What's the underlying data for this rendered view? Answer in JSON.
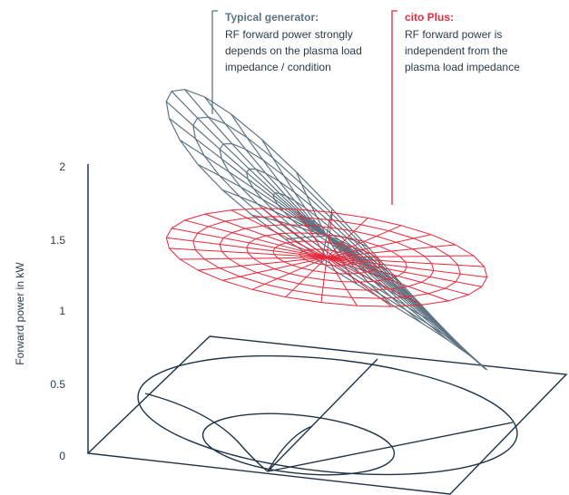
{
  "chart_data": {
    "type": "surface",
    "ylabel": "Forward power in kW",
    "yticks": [
      "2",
      "1.5",
      "1",
      "0.5",
      "0"
    ],
    "ylim": [
      0,
      2
    ],
    "series": [
      {
        "name": "Typical generator",
        "color": "#5f7482",
        "forward_power_kw_range": [
          0.7,
          2.3
        ],
        "dependent_on_load": true
      },
      {
        "name": "cito Plus",
        "color": "#e8283c",
        "forward_power_kw": 1.35,
        "dependent_on_load": false
      }
    ],
    "annotations": [
      {
        "title": "Typical generator:",
        "lines": [
          "RF forward power strongly",
          "depends on the plasma load",
          "impedance / condition"
        ],
        "color": "#5f7482"
      },
      {
        "title": "cito Plus:",
        "lines": [
          "RF forward power is",
          "independent from the",
          "plasma load impedance"
        ],
        "color": "#e8283c"
      }
    ]
  }
}
